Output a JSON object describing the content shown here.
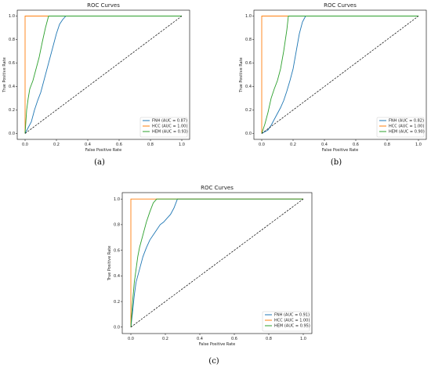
{
  "chart_data": [
    {
      "panel": "(a)",
      "type": "line",
      "title": "ROC Curves",
      "xlabel": "False Positive Rate",
      "ylabel": "True Positive Rate",
      "xlim": [
        -0.05,
        1.05
      ],
      "ylim": [
        -0.05,
        1.05
      ],
      "xticks": [
        "0.0",
        "0.2",
        "0.4",
        "0.6",
        "0.8",
        "1.0"
      ],
      "yticks": [
        "0.0",
        "0.2",
        "0.4",
        "0.6",
        "0.8",
        "1.0"
      ],
      "legend_position": "lower-right",
      "grid": false,
      "series": [
        {
          "name": "FNH (AUC = 0.87)",
          "color": "#1f77b4",
          "x": [
            0,
            0.02,
            0.04,
            0.05,
            0.06,
            0.08,
            0.1,
            0.12,
            0.14,
            0.16,
            0.18,
            0.2,
            0.22,
            0.24,
            0.26,
            1
          ],
          "y": [
            0,
            0.05,
            0.1,
            0.15,
            0.2,
            0.28,
            0.35,
            0.45,
            0.55,
            0.65,
            0.75,
            0.85,
            0.93,
            0.97,
            1,
            1
          ]
        },
        {
          "name": "HCC (AUC = 1.00)",
          "color": "#ff7f0e",
          "x": [
            0,
            0,
            1
          ],
          "y": [
            0,
            1,
            1
          ]
        },
        {
          "name": "HEM (AUC = 0.93)",
          "color": "#2ca02c",
          "x": [
            0,
            0.01,
            0.02,
            0.03,
            0.05,
            0.07,
            0.09,
            0.11,
            0.13,
            0.15,
            1
          ],
          "y": [
            0,
            0.2,
            0.3,
            0.38,
            0.45,
            0.55,
            0.65,
            0.78,
            0.9,
            1,
            1
          ]
        },
        {
          "name": "",
          "color": "#000000",
          "dashed": true,
          "x": [
            0,
            1
          ],
          "y": [
            0,
            1
          ]
        }
      ]
    },
    {
      "panel": "(b)",
      "type": "line",
      "title": "ROC Curves",
      "xlabel": "False Positive Rate",
      "ylabel": "True Positive Rate",
      "xlim": [
        -0.05,
        1.05
      ],
      "ylim": [
        -0.05,
        1.05
      ],
      "xticks": [
        "0.0",
        "0.2",
        "0.4",
        "0.6",
        "0.8",
        "1.0"
      ],
      "yticks": [
        "0.0",
        "0.2",
        "0.4",
        "0.6",
        "0.8",
        "1.0"
      ],
      "legend_position": "lower-right",
      "grid": false,
      "series": [
        {
          "name": "FNH (AUC = 0.82)",
          "color": "#1f77b4",
          "x": [
            0,
            0.04,
            0.06,
            0.08,
            0.1,
            0.12,
            0.14,
            0.16,
            0.18,
            0.2,
            0.22,
            0.24,
            0.26,
            0.28,
            1
          ],
          "y": [
            0,
            0.03,
            0.07,
            0.12,
            0.17,
            0.22,
            0.28,
            0.36,
            0.45,
            0.55,
            0.7,
            0.85,
            0.95,
            1,
            1
          ]
        },
        {
          "name": "HCC (AUC = 1.00)",
          "color": "#ff7f0e",
          "x": [
            0,
            0,
            1
          ],
          "y": [
            0,
            1,
            1
          ]
        },
        {
          "name": "HEM (AUC = 0.90)",
          "color": "#2ca02c",
          "x": [
            0,
            0.02,
            0.04,
            0.06,
            0.08,
            0.1,
            0.12,
            0.14,
            0.16,
            0.17,
            1
          ],
          "y": [
            0,
            0.08,
            0.18,
            0.3,
            0.38,
            0.45,
            0.55,
            0.7,
            0.88,
            1,
            1
          ]
        },
        {
          "name": "",
          "color": "#000000",
          "dashed": true,
          "x": [
            0,
            1
          ],
          "y": [
            0,
            1
          ]
        }
      ]
    },
    {
      "panel": "(c)",
      "type": "line",
      "title": "ROC Curves",
      "xlabel": "False Positive Rate",
      "ylabel": "True Positive Rate",
      "xlim": [
        -0.05,
        1.05
      ],
      "ylim": [
        -0.05,
        1.05
      ],
      "xticks": [
        "0.0",
        "0.2",
        "0.4",
        "0.6",
        "0.8",
        "1.0"
      ],
      "yticks": [
        "0.0",
        "0.2",
        "0.4",
        "0.6",
        "0.8",
        "1.0"
      ],
      "legend_position": "lower-right",
      "grid": false,
      "series": [
        {
          "name": "FNH (AUC = 0.91)",
          "color": "#1f77b4",
          "x": [
            0,
            0.01,
            0.02,
            0.03,
            0.05,
            0.07,
            0.09,
            0.11,
            0.13,
            0.15,
            0.17,
            0.19,
            0.21,
            0.23,
            0.25,
            0.27,
            1
          ],
          "y": [
            0,
            0.12,
            0.25,
            0.35,
            0.45,
            0.55,
            0.62,
            0.68,
            0.72,
            0.76,
            0.8,
            0.82,
            0.85,
            0.88,
            0.93,
            1,
            1
          ]
        },
        {
          "name": "HCC (AUC = 1.00)",
          "color": "#ff7f0e",
          "x": [
            0,
            0,
            1
          ],
          "y": [
            0,
            1,
            1
          ]
        },
        {
          "name": "HEM (AUC = 0.95)",
          "color": "#2ca02c",
          "x": [
            0,
            0.01,
            0.02,
            0.03,
            0.04,
            0.05,
            0.07,
            0.09,
            0.11,
            0.13,
            0.15,
            1
          ],
          "y": [
            0,
            0.2,
            0.35,
            0.45,
            0.55,
            0.62,
            0.72,
            0.82,
            0.9,
            0.97,
            1,
            1
          ]
        },
        {
          "name": "",
          "color": "#000000",
          "dashed": true,
          "x": [
            0,
            1
          ],
          "y": [
            0,
            1
          ]
        }
      ]
    }
  ]
}
